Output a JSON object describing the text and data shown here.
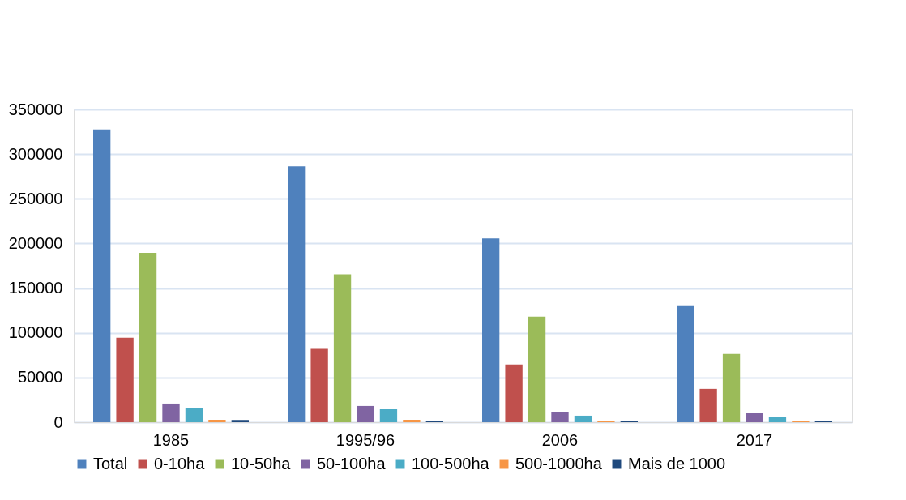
{
  "chart_data": {
    "type": "bar",
    "categories": [
      "1985",
      "1995/96",
      "2006",
      "2017"
    ],
    "series": [
      {
        "name": "Total",
        "color": "#4f81bd",
        "values": [
          327500,
          286400,
          205500,
          130900
        ]
      },
      {
        "name": "0-10ha",
        "color": "#c0504d",
        "values": [
          94500,
          82100,
          64500,
          37300
        ]
      },
      {
        "name": "10-50ha",
        "color": "#9bbb59",
        "values": [
          189400,
          165500,
          118200,
          76400
        ]
      },
      {
        "name": "50-100ha",
        "color": "#8064a2",
        "values": [
          20900,
          18200,
          11800,
          10000
        ]
      },
      {
        "name": "100-500ha",
        "color": "#4bacc6",
        "values": [
          16100,
          14500,
          7300,
          5500
        ]
      },
      {
        "name": "500-1000ha",
        "color": "#f79646",
        "values": [
          2700,
          2700,
          900,
          1300
        ]
      },
      {
        "name": "Mais de 1000",
        "color": "#1f497d",
        "values": [
          2500,
          1800,
          900,
          1000
        ]
      }
    ],
    "ylim": [
      0,
      350000
    ],
    "yticks": [
      0,
      50000,
      100000,
      150000,
      200000,
      250000,
      300000,
      350000
    ],
    "grid": "y",
    "legend": "bottom"
  }
}
